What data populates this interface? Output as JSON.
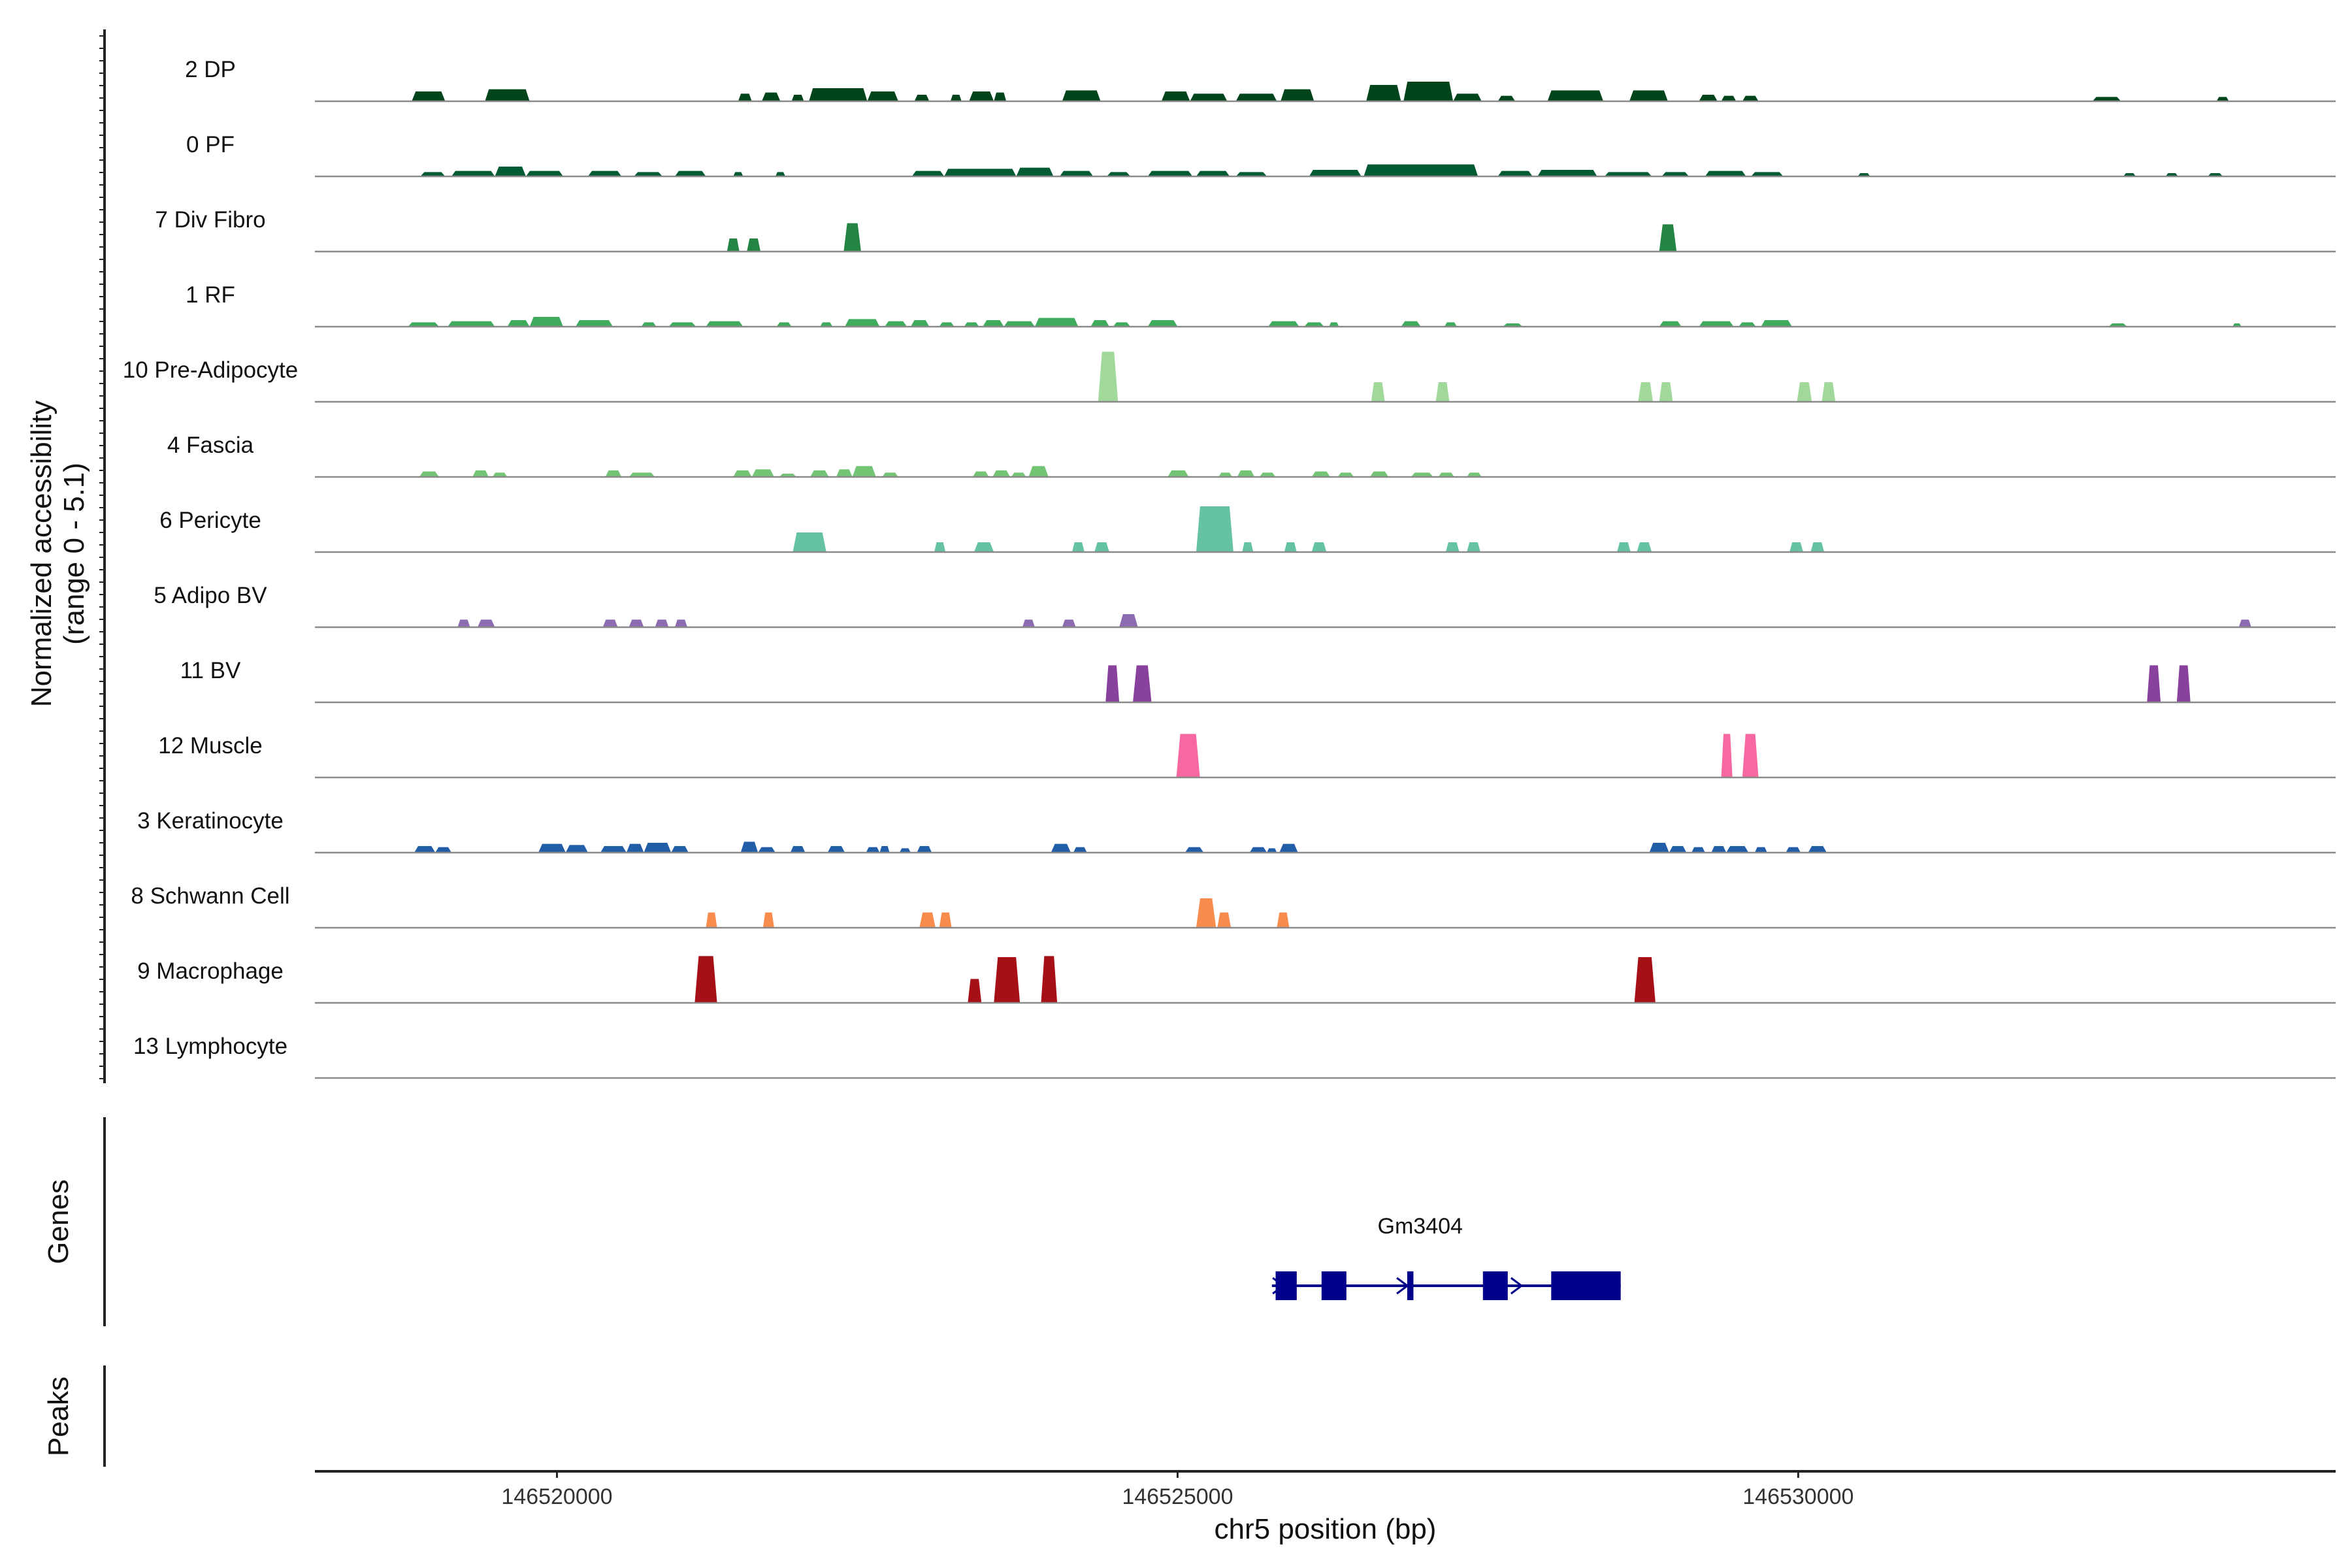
{
  "chart_data": {
    "type": "coverage",
    "yaxis_title_line1": "Normalized accessibility",
    "yaxis_title_line2": "(range 0 - 5.1)",
    "y_range": [
      0,
      5.1
    ],
    "xlabel": "chr5 position (bp)",
    "x_range": [
      146518050,
      146534330
    ],
    "x_ticks": [
      146520000,
      146525000,
      146530000
    ],
    "x_tick_labels": [
      "146520000",
      "146525000",
      "146530000"
    ],
    "tracks": [
      {
        "name": "2 DP",
        "color": "#00441b",
        "peaks": [
          [
            146518830,
            146519100,
            0.9
          ],
          [
            146519420,
            146519780,
            1.1
          ],
          [
            146521460,
            146521570,
            0.7
          ],
          [
            146521650,
            146521800,
            0.8
          ],
          [
            146521890,
            146521990,
            0.6
          ],
          [
            146522030,
            146522500,
            1.2
          ],
          [
            146522500,
            146522750,
            0.9
          ],
          [
            146522880,
            146523000,
            0.6
          ],
          [
            146523170,
            146523260,
            0.6
          ],
          [
            146523320,
            146523520,
            0.9
          ],
          [
            146523520,
            146523620,
            0.8
          ],
          [
            146524070,
            146524380,
            1.0
          ],
          [
            146524870,
            146525100,
            0.9
          ],
          [
            146525100,
            146525400,
            0.7
          ],
          [
            146525470,
            146525800,
            0.7
          ],
          [
            146525830,
            146526100,
            1.1
          ],
          [
            146526520,
            146526800,
            1.5
          ],
          [
            146526820,
            146527220,
            1.8
          ],
          [
            146527220,
            146527450,
            0.7
          ],
          [
            146527580,
            146527720,
            0.5
          ],
          [
            146527980,
            146528430,
            1.0
          ],
          [
            146528640,
            146528950,
            1.0
          ],
          [
            146529200,
            146529350,
            0.6
          ],
          [
            146529380,
            146529500,
            0.5
          ],
          [
            146529550,
            146529680,
            0.5
          ],
          [
            146532370,
            146532600,
            0.4
          ],
          [
            146533370,
            146533470,
            0.4
          ]
        ]
      },
      {
        "name": "0 PF",
        "color": "#005a32",
        "peaks": [
          [
            146518900,
            146519100,
            0.4
          ],
          [
            146519150,
            146519500,
            0.5
          ],
          [
            146519500,
            146519750,
            0.9
          ],
          [
            146519750,
            146520050,
            0.5
          ],
          [
            146520250,
            146520520,
            0.5
          ],
          [
            146520620,
            146520850,
            0.4
          ],
          [
            146520950,
            146521200,
            0.5
          ],
          [
            146521420,
            146521500,
            0.4
          ],
          [
            146521760,
            146521840,
            0.4
          ],
          [
            146522860,
            146523120,
            0.5
          ],
          [
            146523120,
            146523700,
            0.7
          ],
          [
            146523700,
            146524000,
            0.8
          ],
          [
            146524050,
            146524320,
            0.5
          ],
          [
            146524430,
            146524620,
            0.4
          ],
          [
            146524760,
            146525120,
            0.5
          ],
          [
            146525150,
            146525420,
            0.5
          ],
          [
            146525470,
            146525720,
            0.4
          ],
          [
            146526060,
            146526480,
            0.6
          ],
          [
            146526500,
            146527420,
            1.1
          ],
          [
            146527580,
            146527860,
            0.5
          ],
          [
            146527900,
            146528380,
            0.6
          ],
          [
            146528440,
            146528820,
            0.4
          ],
          [
            146528900,
            146529120,
            0.4
          ],
          [
            146529250,
            146529580,
            0.5
          ],
          [
            146529620,
            146529880,
            0.4
          ],
          [
            146530480,
            146530580,
            0.3
          ],
          [
            146532620,
            146532720,
            0.3
          ],
          [
            146532960,
            146533060,
            0.3
          ],
          [
            146533300,
            146533420,
            0.3
          ]
        ]
      },
      {
        "name": "7 Div Fibro",
        "color": "#238443",
        "peaks": [
          [
            146521370,
            146521470,
            1.2
          ],
          [
            146521530,
            146521640,
            1.2
          ],
          [
            146522310,
            146522450,
            2.6
          ],
          [
            146528880,
            146529020,
            2.5
          ]
        ]
      },
      {
        "name": "1 RF",
        "color": "#41ab5d",
        "peaks": [
          [
            146518800,
            146519050,
            0.4
          ],
          [
            146519120,
            146519500,
            0.5
          ],
          [
            146519600,
            146519780,
            0.6
          ],
          [
            146519780,
            146520050,
            0.9
          ],
          [
            146520150,
            146520450,
            0.6
          ],
          [
            146520680,
            146520800,
            0.4
          ],
          [
            146520900,
            146521120,
            0.4
          ],
          [
            146521200,
            146521500,
            0.5
          ],
          [
            146521770,
            146521890,
            0.4
          ],
          [
            146522120,
            146522220,
            0.4
          ],
          [
            146522320,
            146522600,
            0.7
          ],
          [
            146522640,
            146522820,
            0.5
          ],
          [
            146522850,
            146523000,
            0.6
          ],
          [
            146523080,
            146523200,
            0.4
          ],
          [
            146523280,
            146523400,
            0.4
          ],
          [
            146523430,
            146523600,
            0.6
          ],
          [
            146523600,
            146523850,
            0.5
          ],
          [
            146523850,
            146524200,
            0.8
          ],
          [
            146524300,
            146524450,
            0.6
          ],
          [
            146524480,
            146524620,
            0.4
          ],
          [
            146524760,
            146525000,
            0.6
          ],
          [
            146525730,
            146525980,
            0.5
          ],
          [
            146526020,
            146526180,
            0.4
          ],
          [
            146526220,
            146526300,
            0.4
          ],
          [
            146526800,
            146526960,
            0.5
          ],
          [
            146527150,
            146527250,
            0.4
          ],
          [
            146527620,
            146527780,
            0.3
          ],
          [
            146528880,
            146529060,
            0.5
          ],
          [
            146529200,
            146529480,
            0.5
          ],
          [
            146529520,
            146529660,
            0.4
          ],
          [
            146529700,
            146529950,
            0.6
          ],
          [
            146532500,
            146532650,
            0.3
          ],
          [
            146533500,
            146533570,
            0.3
          ]
        ]
      },
      {
        "name": "10 Pre-Adipocyte",
        "color": "#a1d99b",
        "peaks": [
          [
            146524360,
            146524520,
            4.6
          ],
          [
            146526560,
            146526670,
            1.8
          ],
          [
            146527080,
            146527190,
            1.8
          ],
          [
            146528710,
            146528830,
            1.8
          ],
          [
            146528880,
            146528990,
            1.8
          ],
          [
            146529990,
            146530110,
            1.8
          ],
          [
            146530190,
            146530300,
            1.8
          ]
        ]
      },
      {
        "name": "4 Fascia",
        "color": "#74c476",
        "peaks": [
          [
            146518890,
            146519050,
            0.5
          ],
          [
            146519320,
            146519450,
            0.6
          ],
          [
            146519480,
            146519600,
            0.4
          ],
          [
            146520390,
            146520520,
            0.6
          ],
          [
            146520580,
            146520790,
            0.4
          ],
          [
            146521420,
            146521570,
            0.6
          ],
          [
            146521570,
            146521750,
            0.7
          ],
          [
            146521790,
            146521930,
            0.3
          ],
          [
            146522040,
            146522190,
            0.6
          ],
          [
            146522250,
            146522380,
            0.7
          ],
          [
            146522380,
            146522570,
            1.0
          ],
          [
            146522620,
            146522750,
            0.4
          ],
          [
            146523350,
            146523480,
            0.5
          ],
          [
            146523510,
            146523650,
            0.6
          ],
          [
            146523660,
            146523780,
            0.4
          ],
          [
            146523800,
            146523960,
            1.0
          ],
          [
            146524920,
            146525090,
            0.6
          ],
          [
            146525330,
            146525440,
            0.4
          ],
          [
            146525480,
            146525620,
            0.6
          ],
          [
            146525660,
            146525790,
            0.4
          ],
          [
            146526080,
            146526230,
            0.5
          ],
          [
            146526290,
            146526420,
            0.4
          ],
          [
            146526550,
            146526700,
            0.5
          ],
          [
            146526880,
            146527060,
            0.4
          ],
          [
            146527100,
            146527230,
            0.4
          ],
          [
            146527330,
            146527450,
            0.4
          ]
        ]
      },
      {
        "name": "6 Pericyte",
        "color": "#66c2a4",
        "peaks": [
          [
            146521900,
            146522170,
            1.8
          ],
          [
            146523040,
            146523130,
            0.9
          ],
          [
            146523360,
            146523520,
            0.9
          ],
          [
            146524150,
            146524250,
            0.9
          ],
          [
            146524330,
            146524450,
            0.9
          ],
          [
            146525150,
            146525450,
            4.2
          ],
          [
            146525520,
            146525610,
            0.9
          ],
          [
            146525860,
            146525960,
            0.9
          ],
          [
            146526080,
            146526200,
            0.9
          ],
          [
            146527160,
            146527270,
            0.9
          ],
          [
            146527330,
            146527440,
            0.9
          ],
          [
            146528540,
            146528650,
            0.9
          ],
          [
            146528700,
            146528820,
            0.9
          ],
          [
            146529930,
            146530040,
            0.9
          ],
          [
            146530100,
            146530210,
            0.9
          ]
        ]
      },
      {
        "name": "5 Adipo BV",
        "color": "#8c6bb1",
        "peaks": [
          [
            146519200,
            146519300,
            0.7
          ],
          [
            146519360,
            146519500,
            0.7
          ],
          [
            146520370,
            146520490,
            0.7
          ],
          [
            146520580,
            146520700,
            0.7
          ],
          [
            146520790,
            146520900,
            0.7
          ],
          [
            146520950,
            146521050,
            0.7
          ],
          [
            146523750,
            146523850,
            0.7
          ],
          [
            146524070,
            146524180,
            0.7
          ],
          [
            146524530,
            146524680,
            1.2
          ],
          [
            146533550,
            146533650,
            0.7
          ]
        ]
      },
      {
        "name": "11 BV",
        "color": "#88419d",
        "peaks": [
          [
            146524420,
            146524530,
            3.4
          ],
          [
            146524640,
            146524790,
            3.4
          ],
          [
            146532810,
            146532920,
            3.4
          ],
          [
            146533050,
            146533160,
            3.4
          ]
        ]
      },
      {
        "name": "12 Muscle",
        "color": "#f768a1",
        "peaks": [
          [
            146524990,
            146525180,
            4.0
          ],
          [
            146529380,
            146529470,
            4.0
          ],
          [
            146529550,
            146529680,
            4.0
          ]
        ]
      },
      {
        "name": "3 Keratinocyte",
        "color": "#225ea8",
        "peaks": [
          [
            146518850,
            146519020,
            0.6
          ],
          [
            146519020,
            146519150,
            0.5
          ],
          [
            146519850,
            146520070,
            0.8
          ],
          [
            146520070,
            146520250,
            0.7
          ],
          [
            146520350,
            146520560,
            0.6
          ],
          [
            146520560,
            146520700,
            0.8
          ],
          [
            146520700,
            146520920,
            0.9
          ],
          [
            146520920,
            146521060,
            0.6
          ],
          [
            146521480,
            146521620,
            1.0
          ],
          [
            146521620,
            146521760,
            0.5
          ],
          [
            146521880,
            146522000,
            0.6
          ],
          [
            146522180,
            146522320,
            0.6
          ],
          [
            146522490,
            146522600,
            0.5
          ],
          [
            146522600,
            146522680,
            0.6
          ],
          [
            146522760,
            146522850,
            0.4
          ],
          [
            146522900,
            146523020,
            0.6
          ],
          [
            146523980,
            146524140,
            0.8
          ],
          [
            146524160,
            146524270,
            0.5
          ],
          [
            146525060,
            146525210,
            0.5
          ],
          [
            146525580,
            146525720,
            0.5
          ],
          [
            146525720,
            146525800,
            0.4
          ],
          [
            146525820,
            146525970,
            0.8
          ],
          [
            146528800,
            146528960,
            0.9
          ],
          [
            146528960,
            146529100,
            0.6
          ],
          [
            146529140,
            146529250,
            0.5
          ],
          [
            146529300,
            146529420,
            0.6
          ],
          [
            146529420,
            146529600,
            0.6
          ],
          [
            146529650,
            146529750,
            0.5
          ],
          [
            146529900,
            146530020,
            0.5
          ],
          [
            146530080,
            146530230,
            0.6
          ]
        ]
      },
      {
        "name": "8 Schwann Cell",
        "color": "#f78c4d",
        "peaks": [
          [
            146521200,
            146521290,
            1.4
          ],
          [
            146521660,
            146521750,
            1.4
          ],
          [
            146522920,
            146523050,
            1.4
          ],
          [
            146523080,
            146523180,
            1.4
          ],
          [
            146525150,
            146525310,
            2.7
          ],
          [
            146525320,
            146525430,
            1.4
          ],
          [
            146525800,
            146525900,
            1.4
          ]
        ]
      },
      {
        "name": "9 Macrophage",
        "color": "#a50f15",
        "peaks": [
          [
            146521110,
            146521290,
            4.3
          ],
          [
            146523310,
            146523420,
            2.2
          ],
          [
            146523520,
            146523730,
            4.2
          ],
          [
            146523900,
            146524030,
            4.3
          ],
          [
            146528680,
            146528850,
            4.2
          ]
        ]
      },
      {
        "name": "13 Lymphocyte",
        "color": "#7a0177",
        "peaks": []
      }
    ],
    "genes_title": "Genes",
    "gene": {
      "name": "Gm3404",
      "start": 146525760,
      "end": 146528570,
      "color": "#00008b",
      "exons": [
        [
          146525790,
          146525960
        ],
        [
          146526160,
          146526360
        ],
        [
          146526850,
          146526900
        ],
        [
          146527460,
          146527660
        ],
        [
          146528010,
          146528570
        ]
      ],
      "arrow_positions": [
        146525830,
        146526830,
        146527750
      ]
    },
    "peaks_title": "Peaks"
  }
}
